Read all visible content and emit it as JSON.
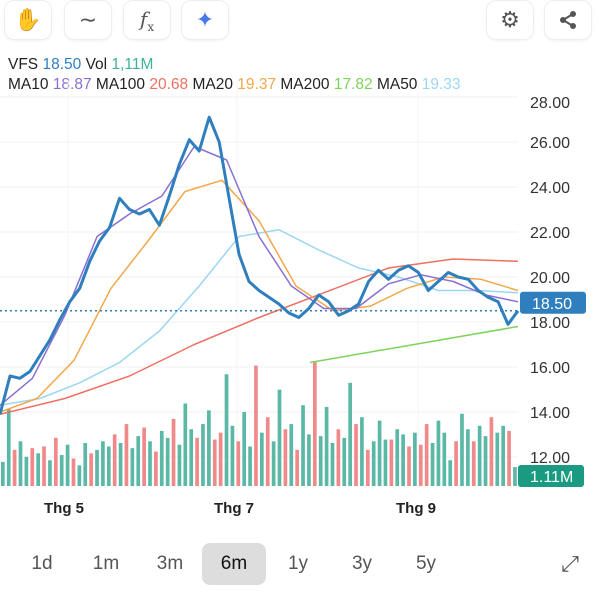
{
  "toolbar": {
    "left": [
      {
        "icon": "hand-icon",
        "glyph": "✋"
      },
      {
        "icon": "line-icon",
        "glyph": "∼"
      },
      {
        "icon": "function-icon",
        "glyph": "fx"
      },
      {
        "icon": "ai-sparkle-icon",
        "glyph": "✦"
      }
    ],
    "right": [
      {
        "icon": "gear-icon",
        "glyph": "⚙"
      },
      {
        "icon": "share-icon",
        "glyph": "⋖"
      }
    ]
  },
  "header": {
    "symbol": "VFS",
    "price": "18.50",
    "vol_label": "Vol",
    "vol": "1,11M",
    "mas": [
      {
        "label": "MA10",
        "value": "18.87",
        "color": "#8a6fd1"
      },
      {
        "label": "MA100",
        "value": "20.68",
        "color": "#ef6f62"
      },
      {
        "label": "MA20",
        "value": "19.37",
        "color": "#f2a84a"
      },
      {
        "label": "MA200",
        "value": "17.82",
        "color": "#7ed35a"
      },
      {
        "label": "MA50",
        "value": "19.33",
        "color": "#9bd6f2"
      }
    ]
  },
  "chart_data": {
    "type": "line",
    "ylim": [
      12,
      28
    ],
    "yticks": [
      "28.00",
      "26.00",
      "24.00",
      "22.00",
      "20.00",
      "18.00",
      "16.00",
      "14.00",
      "12.00"
    ],
    "xticks": [
      "Thg 5",
      "Thg 7",
      "Thg 9"
    ],
    "price": [
      13.9,
      15.6,
      15.5,
      15.8,
      16.5,
      17.2,
      18.1,
      18.9,
      19.5,
      20.7,
      21.6,
      22.2,
      23.5,
      23.0,
      22.8,
      23.0,
      22.3,
      23.6,
      25.0,
      26.1,
      25.6,
      27.1,
      26.0,
      23.5,
      21.0,
      19.8,
      19.4,
      19.1,
      18.8,
      18.4,
      18.2,
      18.6,
      19.2,
      18.9,
      18.3,
      18.5,
      18.8,
      19.8,
      20.3,
      19.9,
      20.3,
      20.5,
      20.2,
      19.4,
      19.8,
      20.2,
      20.0,
      19.9,
      19.4,
      19.1,
      18.9,
      17.9,
      18.5
    ],
    "last_price": "18.50",
    "last_volume": "1.11M",
    "ma10": [
      14.3,
      15.5,
      18.3,
      21.8,
      22.8,
      23.6,
      25.8,
      25.2,
      21.8,
      19.6,
      18.6,
      18.6,
      19.7,
      20.1,
      19.8,
      19.2,
      18.9
    ],
    "ma20": [
      14.0,
      14.6,
      16.3,
      19.5,
      21.6,
      23.8,
      24.3,
      22.5,
      19.6,
      18.5,
      18.7,
      19.5,
      20.0,
      19.9,
      19.4
    ],
    "ma50": [
      14.3,
      14.6,
      15.3,
      16.2,
      17.6,
      19.6,
      21.8,
      22.1,
      21.2,
      20.4,
      20.0,
      19.4,
      19.4,
      19.3
    ],
    "ma100": [
      13.9,
      14.6,
      15.6,
      17.0,
      18.2,
      19.3,
      20.4,
      20.8,
      20.7
    ],
    "ma200": [
      16.2,
      17.8
    ],
    "volume": [
      1.4,
      4.5,
      2.1,
      2.6,
      1.7,
      2.2,
      1.9,
      2.3,
      1.5,
      2.8,
      1.8,
      2.4,
      1.6,
      1.2,
      2.5,
      1.9,
      2.1,
      2.6,
      2.3,
      3.0,
      2.5,
      3.6,
      2.2,
      2.9,
      3.4,
      2.6,
      2.0,
      3.2,
      2.8,
      3.9,
      2.4,
      4.8,
      3.3,
      2.8,
      3.6,
      4.4,
      2.7,
      3.1,
      6.5,
      3.5,
      2.6,
      4.3,
      2.3,
      7.0,
      3.1,
      4.0,
      2.6,
      5.6,
      3.3,
      3.6,
      2.1,
      4.7,
      3.0,
      7.2,
      2.9,
      4.6,
      2.5,
      3.3,
      2.8,
      6.0,
      3.6,
      4.0,
      2.1,
      2.6,
      3.8,
      2.7,
      2.7,
      3.3,
      3.0,
      2.3,
      3.1,
      2.4,
      3.6,
      2.5,
      3.8,
      3.1,
      1.5,
      2.6,
      4.2,
      3.3,
      2.6,
      3.5,
      2.9,
      4.0,
      3.1,
      3.5,
      3.2,
      1.1
    ],
    "volume_up": [
      1,
      1,
      0,
      1,
      1,
      0,
      1,
      0,
      1,
      0,
      1,
      1,
      0,
      1,
      1,
      0,
      1,
      1,
      1,
      0,
      1,
      0,
      1,
      1,
      0,
      1,
      0,
      1,
      1,
      0,
      1,
      1,
      1,
      0,
      1,
      1,
      0,
      0,
      1,
      1,
      0,
      1,
      1,
      0,
      1,
      0,
      1,
      1,
      0,
      1,
      0,
      1,
      1,
      0,
      1,
      1,
      1,
      0,
      1,
      1,
      0,
      1,
      0,
      1,
      1,
      1,
      0,
      1,
      1,
      0,
      1,
      0,
      0,
      1,
      1,
      1,
      1,
      0,
      1,
      1,
      0,
      1,
      1,
      0,
      1,
      1,
      0,
      1
    ],
    "colors": {
      "price": "#2f7fbf",
      "up": "#5bb8a6",
      "down": "#f08a8a"
    }
  },
  "ranges": {
    "options": [
      "1d",
      "1m",
      "3m",
      "6m",
      "1y",
      "3y",
      "5y"
    ],
    "selected": "6m"
  },
  "expand_icon": "expand-icon"
}
